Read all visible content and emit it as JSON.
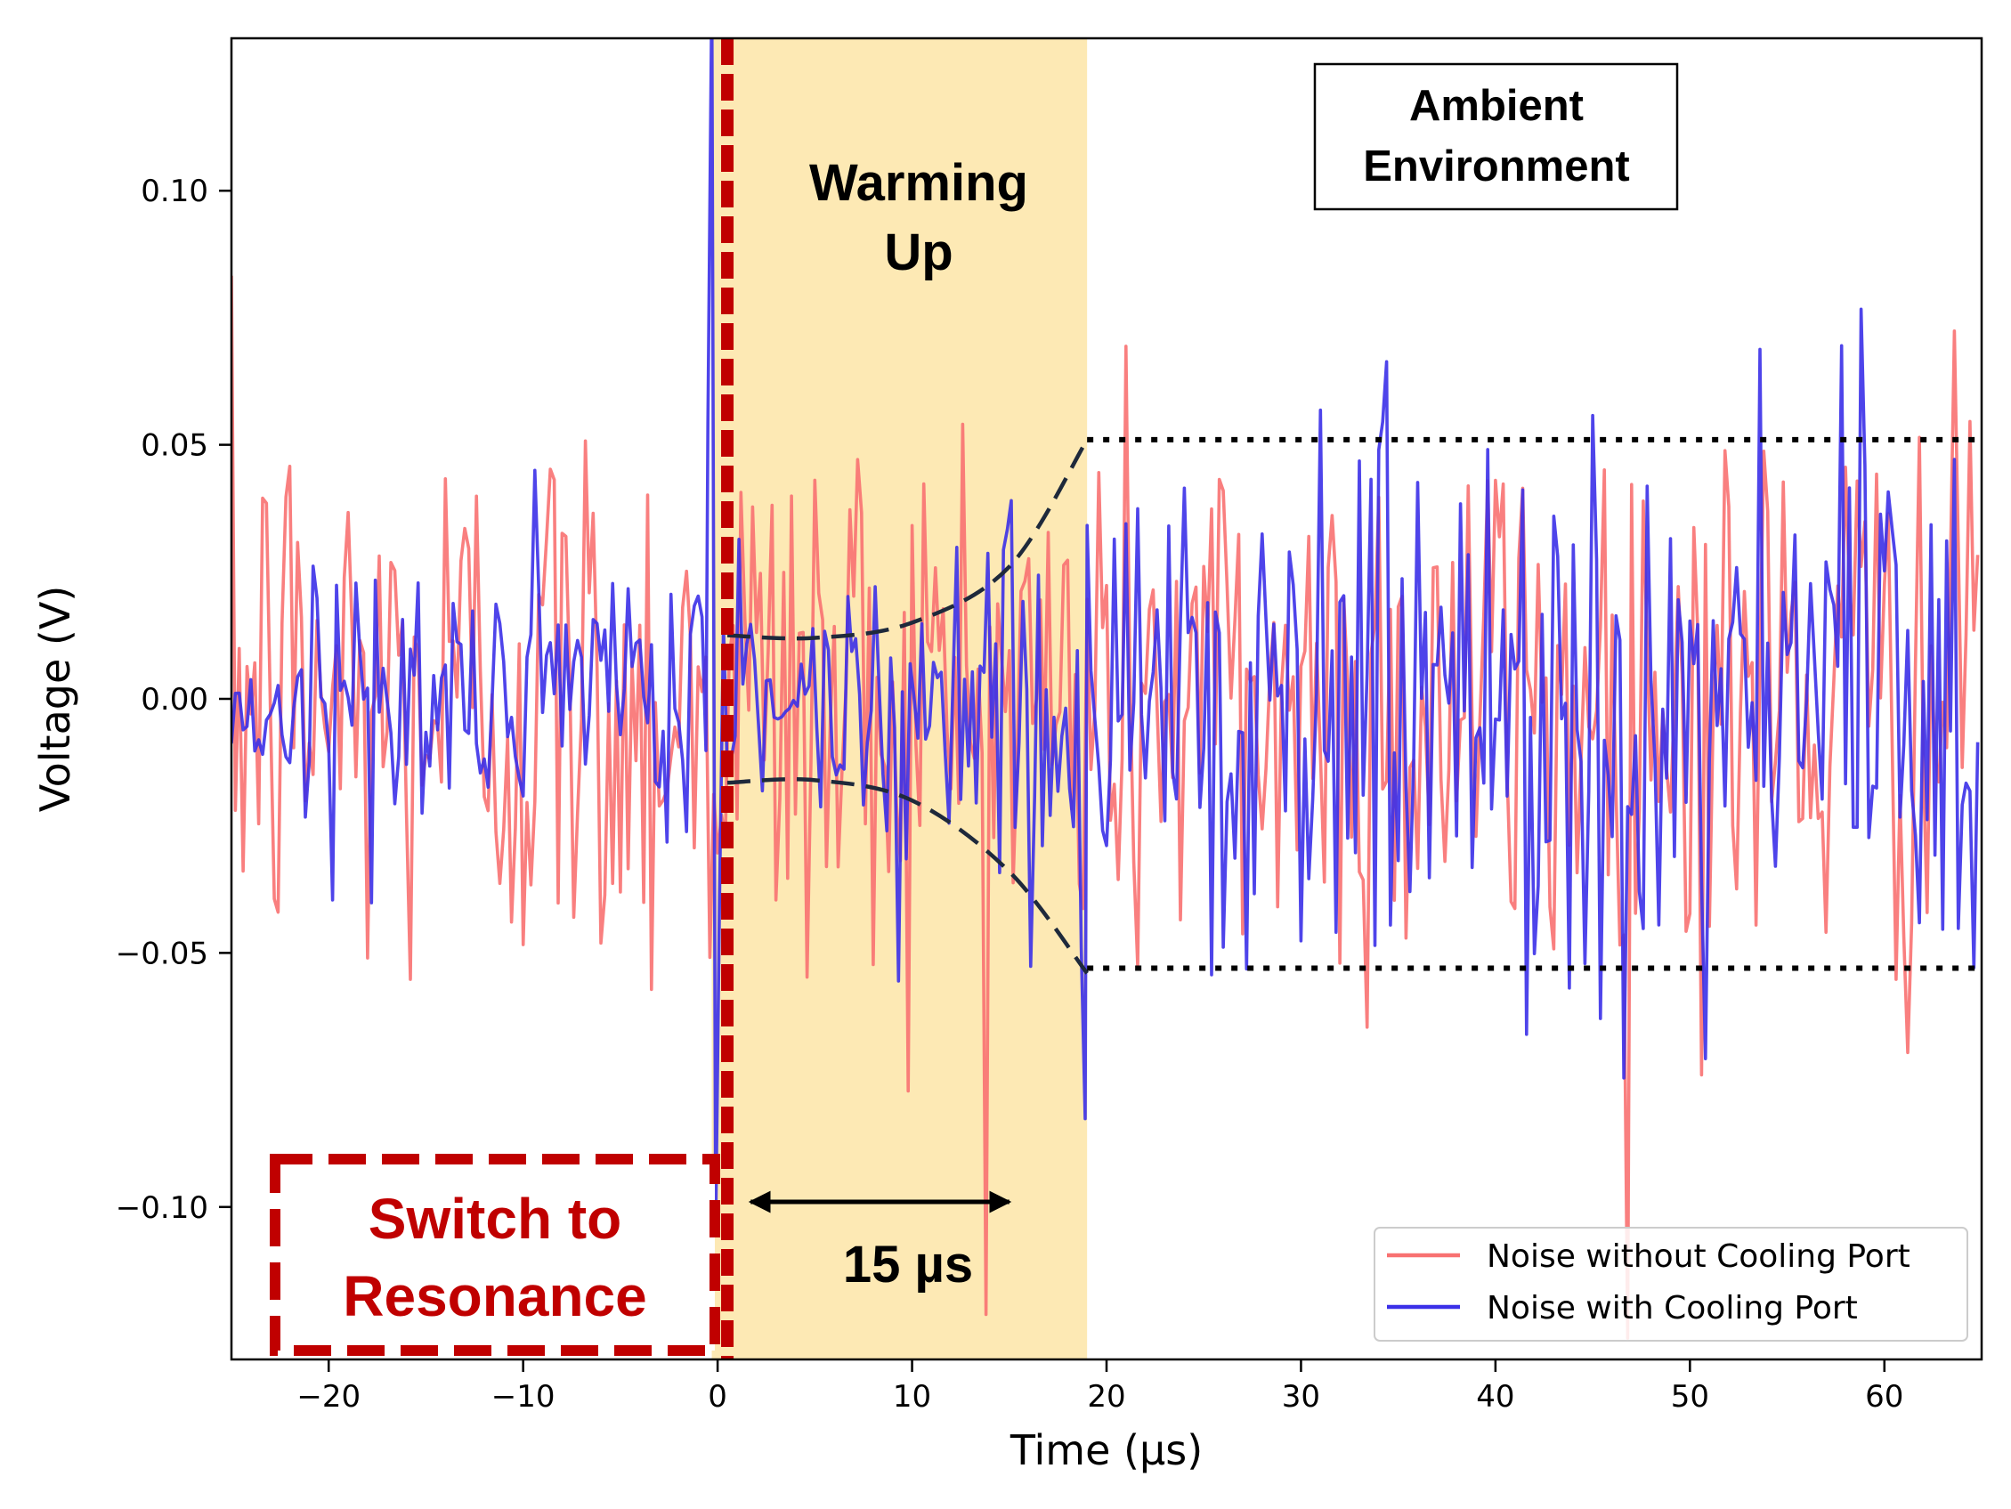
{
  "chart_data": {
    "type": "line",
    "title": "",
    "xlabel": "Time (µs)",
    "ylabel": "Voltage (V)",
    "xlim": [
      -25,
      65
    ],
    "ylim": [
      -0.13,
      0.13
    ],
    "xticks": [
      -20,
      -10,
      0,
      10,
      20,
      30,
      40,
      50,
      60
    ],
    "xtick_labels": [
      "−20",
      "−10",
      "0",
      "10",
      "20",
      "30",
      "40",
      "50",
      "60"
    ],
    "yticks": [
      -0.1,
      -0.05,
      0.0,
      0.05,
      0.1
    ],
    "ytick_labels": [
      "−0.10",
      "−0.05",
      "0.00",
      "0.05",
      "0.10"
    ],
    "grid": false,
    "legend_position": "lower-right",
    "series": [
      {
        "name": "Noise without Cooling Port",
        "color": "#f87171",
        "opacity": 0.9,
        "sample_step_us": 0.2,
        "segments": [
          {
            "t_start": -25,
            "t_end": 65,
            "std": 0.03,
            "mean": 0.0
          }
        ]
      },
      {
        "name": "Noise with Cooling Port",
        "color": "#3b30e8",
        "opacity": 0.9,
        "sample_step_us": 0.2,
        "segments": [
          {
            "t_start": -25,
            "t_end": -0.5,
            "std": 0.013,
            "mean": 0.0
          },
          {
            "t_start": -0.5,
            "t_end": 0.5,
            "std": 0.06,
            "mean": 0.0
          },
          {
            "t_start": 0.5,
            "t_end": 19,
            "std_start": 0.011,
            "std_end": 0.03,
            "mean": 0.0
          },
          {
            "t_start": 19,
            "t_end": 65,
            "std": 0.03,
            "mean": 0.0
          }
        ]
      }
    ],
    "envelope": {
      "upper": [
        [
          0.5,
          0.0125
        ],
        [
          5,
          0.012
        ],
        [
          10,
          0.015
        ],
        [
          15,
          0.026
        ],
        [
          19,
          0.051
        ]
      ],
      "lower": [
        [
          0.5,
          -0.0165
        ],
        [
          5,
          -0.016
        ],
        [
          10,
          -0.02
        ],
        [
          15,
          -0.034
        ],
        [
          19,
          -0.054
        ]
      ],
      "color": "#1e293b"
    },
    "ambient_levels": {
      "upper": 0.051,
      "lower": -0.053,
      "t_start": 19,
      "t_end": 65
    },
    "warming_region": {
      "t_start": -0.3,
      "t_end": 19,
      "color": "#fde9b4"
    },
    "switch_line": {
      "t": 0.5,
      "color": "#c00000"
    },
    "span_arrow": {
      "t_start": 1.7,
      "t_end": 15,
      "y": -0.099
    },
    "annotations": {
      "warming_up": [
        "Warming",
        "Up"
      ],
      "ambient": [
        "Ambient",
        "Environment"
      ],
      "switch": [
        "Switch to",
        "Resonance"
      ],
      "span_label": "15 µs"
    }
  }
}
